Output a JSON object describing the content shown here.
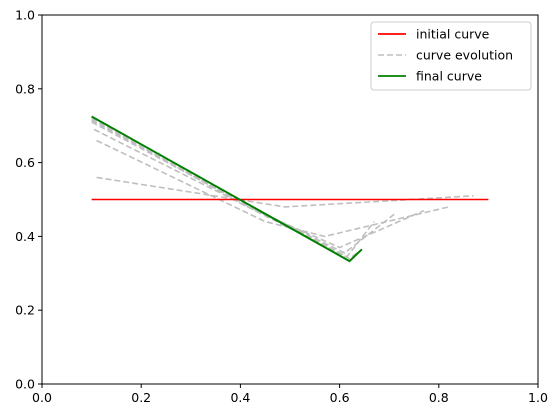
{
  "chart_data": {
    "type": "line",
    "title": "",
    "xlabel": "",
    "ylabel": "",
    "xlim": [
      0,
      1
    ],
    "ylim": [
      0,
      1
    ],
    "xticks": [
      "0.0",
      "0.2",
      "0.4",
      "0.6",
      "0.8",
      "1.0"
    ],
    "yticks": [
      "0.0",
      "0.2",
      "0.4",
      "0.6",
      "0.8",
      "1.0"
    ],
    "grid": false,
    "legend_position": "top-right",
    "series": [
      {
        "name": "initial curve",
        "color": "#ff0000",
        "style": "solid",
        "x": [
          0.1,
          0.9
        ],
        "y": [
          0.5,
          0.5
        ]
      },
      {
        "name": "curve evolution",
        "color": "#bfbfbf",
        "style": "dashed",
        "curves": [
          {
            "x": [
              0.11,
              0.49,
              0.87
            ],
            "y": [
              0.56,
              0.48,
              0.51
            ]
          },
          {
            "x": [
              0.11,
              0.45,
              0.57,
              0.82
            ],
            "y": [
              0.66,
              0.44,
              0.4,
              0.48
            ]
          },
          {
            "x": [
              0.105,
              0.43,
              0.6,
              0.77
            ],
            "y": [
              0.69,
              0.47,
              0.37,
              0.47
            ]
          },
          {
            "x": [
              0.1,
              0.42,
              0.61,
              0.71
            ],
            "y": [
              0.71,
              0.48,
              0.355,
              0.46
            ]
          },
          {
            "x": [
              0.1,
              0.41,
              0.615,
              0.67
            ],
            "y": [
              0.715,
              0.49,
              0.345,
              0.44
            ]
          },
          {
            "x": [
              0.1,
              0.4,
              0.62,
              0.64
            ],
            "y": [
              0.72,
              0.49,
              0.34,
              0.36
            ]
          }
        ]
      },
      {
        "name": "final curve",
        "color": "#008000",
        "style": "solid",
        "x": [
          0.1,
          0.62,
          0.645
        ],
        "y": [
          0.725,
          0.333,
          0.365
        ]
      }
    ]
  }
}
